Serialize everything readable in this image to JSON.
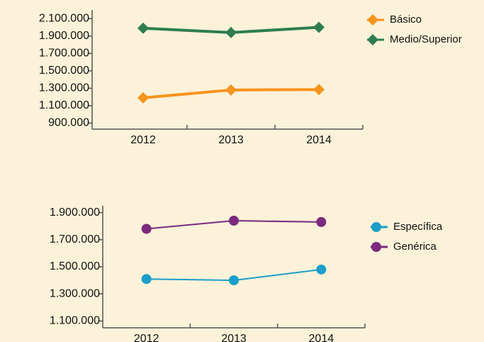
{
  "chart_data": [
    {
      "type": "line",
      "marker": "diamond",
      "categories": [
        "2012",
        "2013",
        "2014"
      ],
      "series": [
        {
          "name": "Básico",
          "color": "#f7941d",
          "values": [
            1190000,
            1280000,
            1285000
          ]
        },
        {
          "name": "Medio/Superior",
          "color": "#2e7d4f",
          "values": [
            1990000,
            1940000,
            2000000
          ]
        }
      ],
      "ylim": [
        830000,
        2200000
      ],
      "yticks": [
        {
          "value": 900000,
          "label": "900.000"
        },
        {
          "value": 1100000,
          "label": "1.100.000"
        },
        {
          "value": 1300000,
          "label": "1.300.000"
        },
        {
          "value": 1500000,
          "label": "1.500.000"
        },
        {
          "value": 1700000,
          "label": "1.700.000"
        },
        {
          "value": 1900000,
          "label": "1.900.000"
        },
        {
          "value": 2100000,
          "label": "2.100.000"
        }
      ]
    },
    {
      "type": "line",
      "marker": "circle",
      "categories": [
        "2012",
        "2013",
        "2014"
      ],
      "series": [
        {
          "name": "Específica",
          "color": "#1a9fc9",
          "values": [
            1410000,
            1400000,
            1480000
          ]
        },
        {
          "name": "Genérica",
          "color": "#7b2a7d",
          "values": [
            1780000,
            1840000,
            1830000
          ]
        }
      ],
      "ylim": [
        1050000,
        1950000
      ],
      "yticks": [
        {
          "value": 1100000,
          "label": "1.100.000"
        },
        {
          "value": 1300000,
          "label": "1.300.000"
        },
        {
          "value": 1500000,
          "label": "1.500.000"
        },
        {
          "value": 1700000,
          "label": "1.700.000"
        },
        {
          "value": 1900000,
          "label": "1.900.000"
        }
      ]
    }
  ]
}
